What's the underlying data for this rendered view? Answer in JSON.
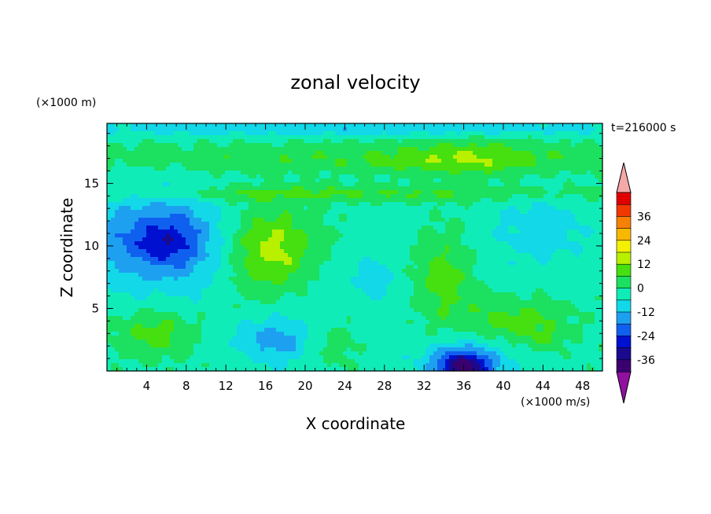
{
  "chart_data": {
    "type": "heatmap",
    "title": "zonal velocity",
    "xlabel": "X coordinate",
    "ylabel": "Z coordinate",
    "y_unit_label": "(×1000 m)",
    "x_unit_label": "(×1000 m/s)",
    "time_label": "t=216000 s",
    "x_ticks": [
      "4",
      "8",
      "12",
      "16",
      "20",
      "24",
      "28",
      "32",
      "36",
      "40",
      "44",
      "48"
    ],
    "y_ticks": [
      "5",
      "10",
      "15"
    ],
    "xlim": [
      0,
      50
    ],
    "ylim": [
      0,
      19.8
    ],
    "colorbar": {
      "tick_labels": [
        "36",
        "24",
        "12",
        "0",
        "-12",
        "-24",
        "-36"
      ],
      "levels": [
        -42,
        -36,
        -30,
        -24,
        -18,
        -12,
        -6,
        0,
        6,
        12,
        18,
        24,
        30,
        36,
        42
      ],
      "colors": [
        "#3a0070",
        "#1a0a90",
        "#0010d0",
        "#1060f0",
        "#1ea0f0",
        "#12d8e8",
        "#10ecb8",
        "#1ce060",
        "#46e010",
        "#b8f000",
        "#f4f000",
        "#f8b800",
        "#f88000",
        "#f03800",
        "#e00000"
      ],
      "under_color": "#9010a0",
      "over_color": "#f4a8a8"
    },
    "features": [
      {
        "x": 25,
        "y": 10,
        "sx": 40,
        "sy": 30,
        "v": -3
      },
      {
        "x": 6,
        "y": 10.5,
        "sx": 5.5,
        "sy": 3.8,
        "v": -19
      },
      {
        "x": 6,
        "y": 10.2,
        "sx": 3.0,
        "sy": 1.6,
        "v": -8
      },
      {
        "x": 0.5,
        "y": 10.5,
        "sx": 3,
        "sy": 4,
        "v": -6
      },
      {
        "x": 15,
        "y": 9.5,
        "sx": 3.2,
        "sy": 3.5,
        "v": 12
      },
      {
        "x": 18,
        "y": 9.5,
        "sx": 2.5,
        "sy": 2.8,
        "v": 8
      },
      {
        "x": 34,
        "y": 7.5,
        "sx": 3.0,
        "sy": 4.0,
        "v": 11
      },
      {
        "x": 41,
        "y": 4.0,
        "sx": 5.5,
        "sy": 1.8,
        "v": 11
      },
      {
        "x": 44,
        "y": 2.5,
        "sx": 2.0,
        "sy": 1.0,
        "v": 5
      },
      {
        "x": 36,
        "y": 0.3,
        "sx": 3.0,
        "sy": 1.3,
        "v": -33
      },
      {
        "x": 36,
        "y": 1.5,
        "sx": 5.0,
        "sy": 1.8,
        "v": -6
      },
      {
        "x": 17,
        "y": 2.5,
        "sx": 3.5,
        "sy": 1.8,
        "v": -13
      },
      {
        "x": 5,
        "y": 3.0,
        "sx": 4.0,
        "sy": 2.0,
        "v": 11
      },
      {
        "x": 23,
        "y": 2.0,
        "sx": 2.5,
        "sy": 2.0,
        "v": 6
      },
      {
        "x": 37,
        "y": 17.0,
        "sx": 8.0,
        "sy": 1.5,
        "v": 9
      },
      {
        "x": 24,
        "y": 17.0,
        "sx": 30.0,
        "sy": 1.3,
        "v": 8
      },
      {
        "x": 25,
        "y": 14.2,
        "sx": 30.0,
        "sy": 0.7,
        "v": 9
      },
      {
        "x": 25,
        "y": 19.4,
        "sx": 40.0,
        "sy": 0.6,
        "v": -8
      },
      {
        "x": 44,
        "y": 11.5,
        "sx": 5.0,
        "sy": 3.0,
        "v": -7
      },
      {
        "x": 27,
        "y": 7.5,
        "sx": 2.0,
        "sy": 2.0,
        "v": -6
      },
      {
        "x": 20,
        "y": 11.0,
        "sx": 4.0,
        "sy": 3.0,
        "v": 5
      }
    ]
  }
}
